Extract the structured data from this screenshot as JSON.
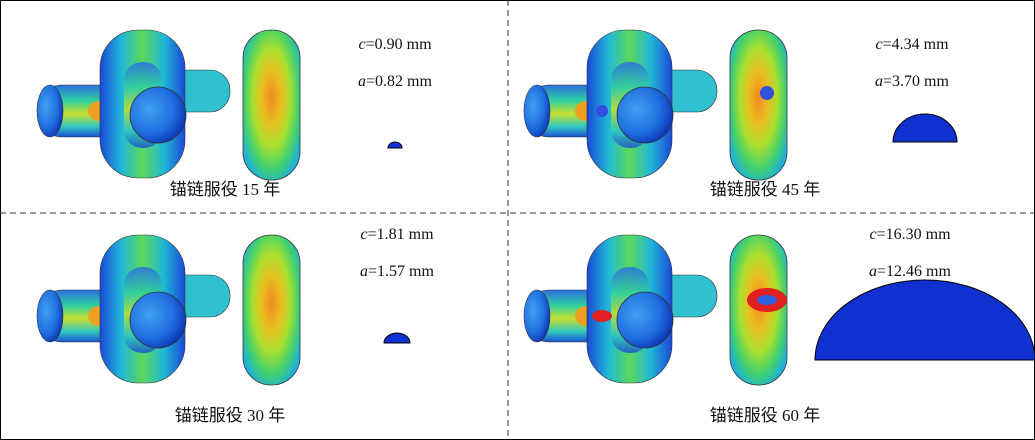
{
  "panels": [
    {
      "c": {
        "symbol": "c",
        "text": "=0.90 mm"
      },
      "a": {
        "symbol": "a",
        "text": "=0.82 mm"
      },
      "caption": "锚链服役 15 年"
    },
    {
      "c": {
        "symbol": "c",
        "text": "=4.34 mm"
      },
      "a": {
        "symbol": "a",
        "text": "=3.70 mm"
      },
      "caption": "锚链服役 45 年"
    },
    {
      "c": {
        "symbol": "c",
        "text": "=1.81 mm"
      },
      "a": {
        "symbol": "a",
        "text": "=1.57 mm"
      },
      "caption": "锚链服役 30 年"
    },
    {
      "c": {
        "symbol": "c",
        "text": "=16.30 mm"
      },
      "a": {
        "symbol": "a",
        "text": "=12.46 mm"
      },
      "caption": "锚链服役 60 年"
    }
  ]
}
